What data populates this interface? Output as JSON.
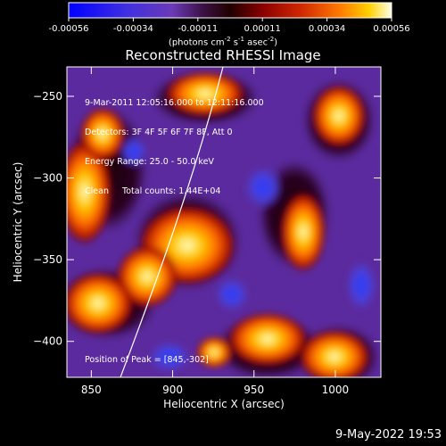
{
  "colorbar": {
    "ticks": [
      "-0.00056",
      "-0.00034",
      "-0.00011",
      "0.00011",
      "0.00034",
      "0.00056"
    ],
    "units_main": "(photons cm",
    "units_exp1": "-2",
    "units_mid1": " s",
    "units_exp2": "-1",
    "units_mid2": " asec",
    "units_exp3": "-2",
    "units_end": ")"
  },
  "plot": {
    "title": "Reconstructed RHESSI Image",
    "xlabel": "Heliocentric X (arcsec)",
    "ylabel": "Heliocentric Y (arcsec)",
    "xticks": [
      850,
      900,
      950,
      1000
    ],
    "yticks": [
      -250,
      -300,
      -350,
      -400
    ],
    "xlim": [
      835,
      1028
    ],
    "ylim": [
      -422,
      -232
    ],
    "info": {
      "line1": "9-Mar-2011 12:05:16.000 to 12:11:16.000",
      "line2": "Detectors: 3F 4F 5F 6F 7F 8F, Att 0",
      "line3": "Energy Range: 25.0 - 50.0 keV",
      "line4": "Clean     Total counts: 1.44E+04"
    },
    "peak": "Position of Peak = [845,-302]"
  },
  "footer": {
    "timestamp": "9-May-2022 19:53"
  },
  "colors": {
    "background": "#000000",
    "purple_bg": "#5b2a9e",
    "colormap": [
      "#0000ff",
      "#3030d8",
      "#6030c0",
      "#5b2a9e",
      "#300010",
      "#800000",
      "#c02000",
      "#ff6000",
      "#ffc000",
      "#ffffe0"
    ]
  }
}
